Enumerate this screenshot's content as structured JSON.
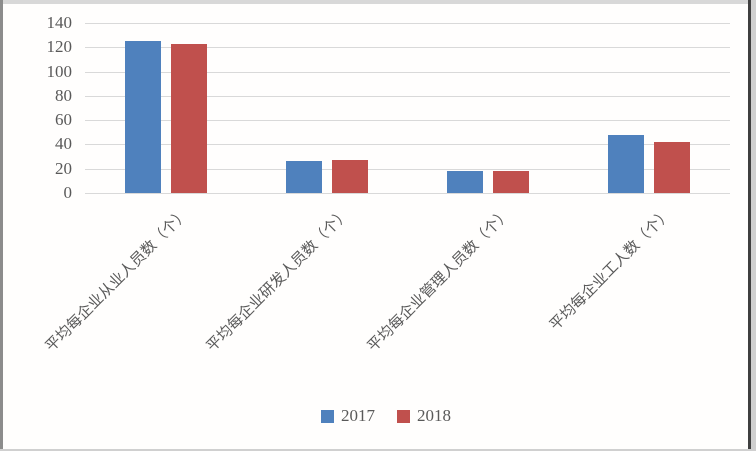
{
  "chart_data": {
    "type": "bar",
    "title": "",
    "xlabel": "",
    "ylabel": "",
    "categories": [
      "平均每企业从业人员数（个）",
      "平均每企业研发人员数（个）",
      "平均每企业管理人员数（个）",
      "平均每企业工人数（个）"
    ],
    "series": [
      {
        "name": "2017",
        "color": "#4F81BD",
        "values": [
          125,
          26,
          18,
          48
        ]
      },
      {
        "name": "2018",
        "color": "#C0504D",
        "values": [
          123,
          27,
          18,
          42
        ]
      }
    ],
    "ylim": [
      0,
      140
    ],
    "yticks": [
      0,
      20,
      40,
      60,
      80,
      100,
      120,
      140
    ],
    "grid": "horizontal-only",
    "legend_position": "bottom-center",
    "category_label_rotation_deg": 45
  },
  "colors": {
    "gridline": "#d9d9d9",
    "tick_text": "#595959",
    "background": "#fffefd",
    "series_2017": "#4F81BD",
    "series_2018": "#C0504D"
  },
  "legend": {
    "items": [
      {
        "label": "2017"
      },
      {
        "label": "2018"
      }
    ]
  }
}
